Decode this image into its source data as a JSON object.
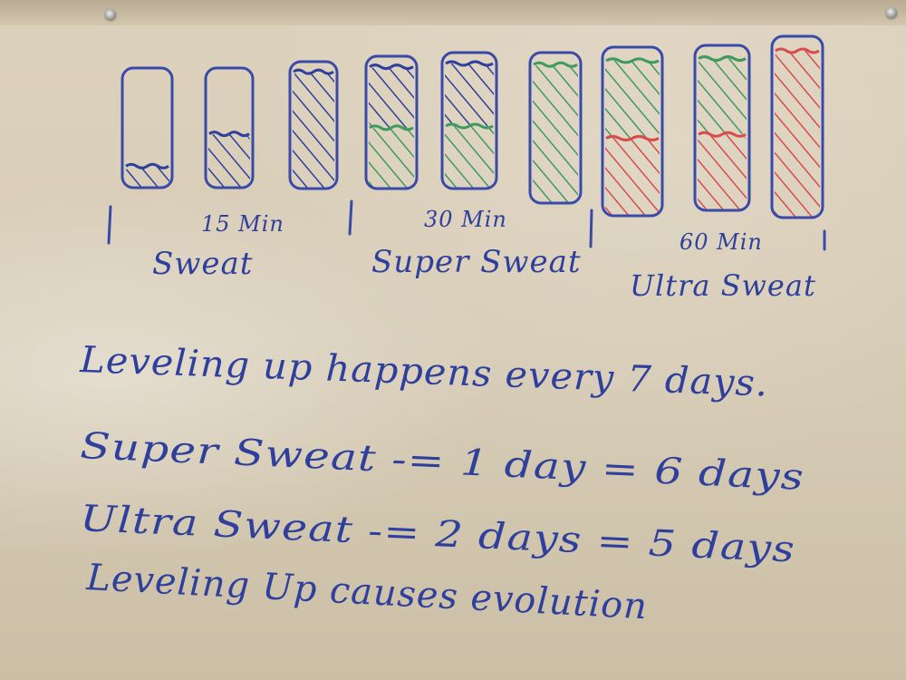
{
  "photo": {
    "subject": "",
    "colors": {
      "blue_marker": "#2f3f9c",
      "green_marker": "#3f9a5e",
      "red_marker": "#d84c4c",
      "board": "#d6cbb5"
    }
  },
  "diagram": {
    "bars": [
      {
        "fill_fraction": 0.18,
        "colors": [
          "blue"
        ]
      },
      {
        "fill_fraction": 0.45,
        "colors": [
          "blue"
        ]
      },
      {
        "fill_fraction": 0.92,
        "colors": [
          "blue"
        ]
      },
      {
        "fill_fraction": 0.92,
        "colors": [
          "blue",
          "green"
        ]
      },
      {
        "fill_fraction": 0.92,
        "colors": [
          "blue",
          "green"
        ]
      },
      {
        "fill_fraction": 0.92,
        "colors": [
          "green"
        ]
      },
      {
        "fill_fraction": 0.92,
        "colors": [
          "green",
          "red"
        ]
      },
      {
        "fill_fraction": 0.92,
        "colors": [
          "green",
          "red"
        ]
      },
      {
        "fill_fraction": 0.92,
        "colors": [
          "red"
        ]
      }
    ],
    "groups": [
      {
        "time": "15 Min",
        "name": "Sweat"
      },
      {
        "time": "30 Min",
        "name": "Super Sweat"
      },
      {
        "time": "60 Min",
        "name": "Ultra Sweat"
      }
    ]
  },
  "notes": {
    "line1": "Leveling up happens every 7 days.",
    "line2": "Super Sweat -= 1 day = 6 days",
    "line3": "Ultra Sweat -= 2 days = 5 days",
    "line4": "Leveling Up causes evolution"
  }
}
